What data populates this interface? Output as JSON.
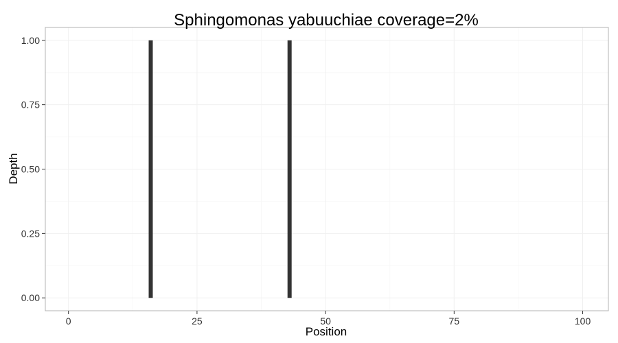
{
  "chart_data": {
    "type": "bar",
    "title": "Sphingomonas yabuuchiae coverage=2%",
    "xlabel": "Position",
    "ylabel": "Depth",
    "xlim": [
      -4.5,
      105
    ],
    "ylim": [
      -0.05,
      1.05
    ],
    "xticks": [
      0,
      25,
      50,
      75,
      100
    ],
    "yticks": [
      0.0,
      0.25,
      0.5,
      0.75,
      1.0
    ],
    "xtick_labels": [
      "0",
      "25",
      "50",
      "75",
      "100"
    ],
    "ytick_labels": [
      "0.00",
      "0.25",
      "0.50",
      "0.75",
      "1.00"
    ],
    "grid": true,
    "points": [
      {
        "x": 16,
        "y": 1.0
      },
      {
        "x": 43,
        "y": 1.0
      }
    ],
    "colors": {
      "bar": "#333333",
      "panel_border": "#b3b3b3",
      "grid_major": "#f0f0f0",
      "grid_minor": "#f8f8f8"
    }
  }
}
